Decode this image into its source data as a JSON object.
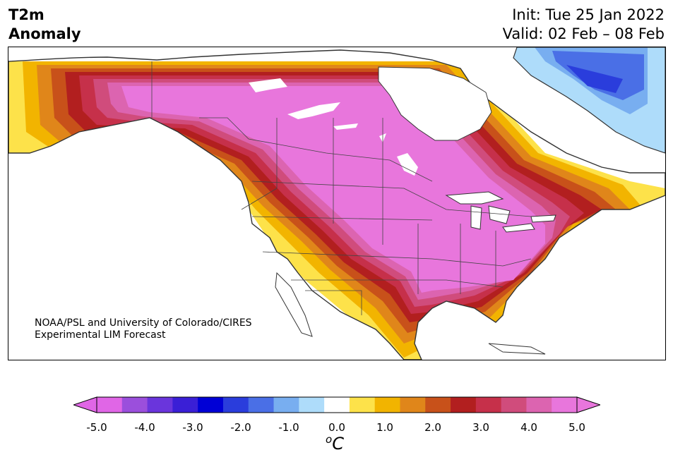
{
  "title": {
    "variable": "T2m",
    "quantity": "Anomaly",
    "init": "Init: Tue 25 Jan 2022",
    "valid": "Valid: 02 Feb – 08 Feb"
  },
  "credit": {
    "line1": "NOAA/PSL and University of Colorado/CIRES",
    "line2": "Experimental LIM Forecast"
  },
  "colorbar": {
    "units_base": "C",
    "units_sup": "o",
    "ticks": [
      "-5.0",
      "-4.0",
      "-3.0",
      "-2.0",
      "-1.0",
      "0.0",
      "1.0",
      "2.0",
      "3.0",
      "4.0",
      "5.0"
    ],
    "levels": [
      -5.0,
      -4.5,
      -4.0,
      -3.5,
      -3.0,
      -2.5,
      -2.0,
      -1.5,
      -1.0,
      -0.5,
      0.5,
      1.0,
      1.5,
      2.0,
      2.5,
      3.0,
      3.5,
      4.0,
      4.5,
      5.0
    ],
    "colors": [
      "#e066e6",
      "#9b4fdc",
      "#6a35dc",
      "#3a1fd6",
      "#0000d6",
      "#2a3ddc",
      "#4a6fe6",
      "#78aef0",
      "#aedcfa",
      "#ffffff",
      "#fde24a",
      "#f2b400",
      "#e0861a",
      "#c8511a",
      "#b21f1f",
      "#c6304a",
      "#d04c7c",
      "#dc64b0",
      "#e876dc"
    ],
    "under_color": "#e066e6",
    "over_color": "#e876dc"
  },
  "map_colors": {
    "ocean": "#ffffff",
    "land_neutral": "#ffffff",
    "coast": "#333333",
    "lake": "#ffffff"
  }
}
